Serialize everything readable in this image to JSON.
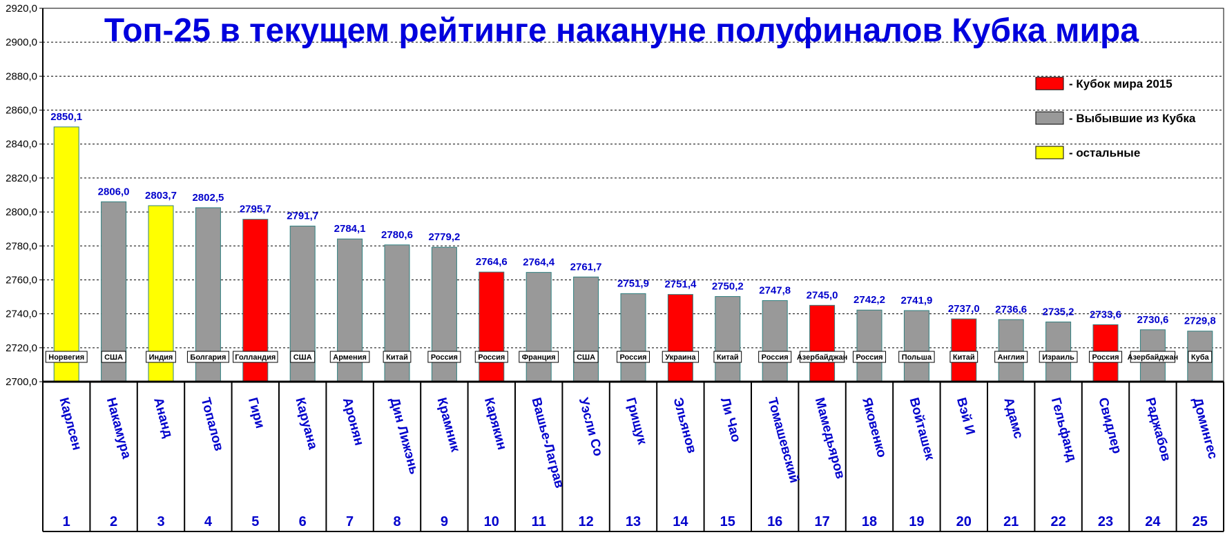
{
  "colors": {
    "cup2015": "#ff0000",
    "eliminated": "#999999",
    "others": "#ffff00",
    "text_blue": "#0000cc"
  },
  "chart_data": {
    "type": "bar",
    "title": "Топ-25 в текущем рейтинге накануне полуфиналов Кубка мира",
    "ylim": [
      2700,
      2920
    ],
    "yticks": [
      "2700,0",
      "2720,0",
      "2740,0",
      "2760,0",
      "2780,0",
      "2800,0",
      "2820,0",
      "2840,0",
      "2860,0",
      "2880,0",
      "2900,0",
      "2920,0"
    ],
    "grid": true,
    "legend_position": "top-right",
    "legend": [
      {
        "key": "cup2015",
        "label": "- Кубок мира 2015"
      },
      {
        "key": "eliminated",
        "label": "- Выбывшие из Кубка"
      },
      {
        "key": "others",
        "label": "- остальные"
      }
    ],
    "players": [
      {
        "rank": "1",
        "name": "Карлсен",
        "country": "Норвегия",
        "value": 2850.1,
        "label": "2850,1",
        "group": "others"
      },
      {
        "rank": "2",
        "name": "Накамура",
        "country": "США",
        "value": 2806.0,
        "label": "2806,0",
        "group": "eliminated"
      },
      {
        "rank": "3",
        "name": "Ананд",
        "country": "Индия",
        "value": 2803.7,
        "label": "2803,7",
        "group": "others"
      },
      {
        "rank": "4",
        "name": "Топалов",
        "country": "Болгария",
        "value": 2802.5,
        "label": "2802,5",
        "group": "eliminated"
      },
      {
        "rank": "5",
        "name": "Гири",
        "country": "Голландия",
        "value": 2795.7,
        "label": "2795,7",
        "group": "cup2015"
      },
      {
        "rank": "6",
        "name": "Каруана",
        "country": "США",
        "value": 2791.7,
        "label": "2791,7",
        "group": "eliminated"
      },
      {
        "rank": "7",
        "name": "Аронян",
        "country": "Армения",
        "value": 2784.1,
        "label": "2784,1",
        "group": "eliminated"
      },
      {
        "rank": "8",
        "name": "Дин Лижэнь",
        "country": "Китай",
        "value": 2780.6,
        "label": "2780,6",
        "group": "eliminated"
      },
      {
        "rank": "9",
        "name": "Крамник",
        "country": "Россия",
        "value": 2779.2,
        "label": "2779,2",
        "group": "eliminated"
      },
      {
        "rank": "10",
        "name": "Карякин",
        "country": "Россия",
        "value": 2764.6,
        "label": "2764,6",
        "group": "cup2015"
      },
      {
        "rank": "11",
        "name": "Вашье-Лаграв",
        "country": "Франция",
        "value": 2764.4,
        "label": "2764,4",
        "group": "eliminated"
      },
      {
        "rank": "12",
        "name": "Уэсли Со",
        "country": "США",
        "value": 2761.7,
        "label": "2761,7",
        "group": "eliminated"
      },
      {
        "rank": "13",
        "name": "Грищук",
        "country": "Россия",
        "value": 2751.9,
        "label": "2751,9",
        "group": "eliminated"
      },
      {
        "rank": "14",
        "name": "Эльянов",
        "country": "Украина",
        "value": 2751.4,
        "label": "2751,4",
        "group": "cup2015"
      },
      {
        "rank": "15",
        "name": "Ли Чао",
        "country": "Китай",
        "value": 2750.2,
        "label": "2750,2",
        "group": "eliminated"
      },
      {
        "rank": "16",
        "name": "Томашевский",
        "country": "Россия",
        "value": 2747.8,
        "label": "2747,8",
        "group": "eliminated"
      },
      {
        "rank": "17",
        "name": "Мамедьяров",
        "country": "Азербайджан",
        "value": 2745.0,
        "label": "2745,0",
        "group": "cup2015"
      },
      {
        "rank": "18",
        "name": "Яковенко",
        "country": "Россия",
        "value": 2742.2,
        "label": "2742,2",
        "group": "eliminated"
      },
      {
        "rank": "19",
        "name": "Войташек",
        "country": "Польша",
        "value": 2741.9,
        "label": "2741,9",
        "group": "eliminated"
      },
      {
        "rank": "20",
        "name": "Вэй И",
        "country": "Китай",
        "value": 2737.0,
        "label": "2737,0",
        "group": "cup2015"
      },
      {
        "rank": "21",
        "name": "Адамс",
        "country": "Англия",
        "value": 2736.6,
        "label": "2736,6",
        "group": "eliminated"
      },
      {
        "rank": "22",
        "name": "Гельфанд",
        "country": "Израиль",
        "value": 2735.2,
        "label": "2735,2",
        "group": "eliminated"
      },
      {
        "rank": "23",
        "name": "Свидлер",
        "country": "Россия",
        "value": 2733.6,
        "label": "2733,6",
        "group": "cup2015"
      },
      {
        "rank": "24",
        "name": "Раджабов",
        "country": "Азербайджан",
        "value": 2730.6,
        "label": "2730,6",
        "group": "eliminated"
      },
      {
        "rank": "25",
        "name": "Домингес",
        "country": "Куба",
        "value": 2729.8,
        "label": "2729,8",
        "group": "eliminated"
      }
    ]
  }
}
